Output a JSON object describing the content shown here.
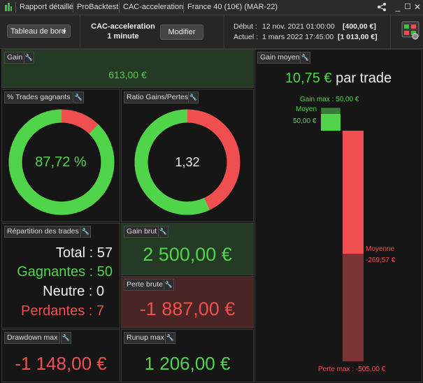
{
  "titlebar": {
    "tab1": "Rapport détaillé",
    "tab2": "ProBacktest",
    "tab3": "CAC-acceleration",
    "tab4": "France 40 (10€) (MAR-22)",
    "share_icon": "share-icon",
    "minimize_icon": "minimize-icon",
    "maximize_icon": "maximize-icon",
    "close_icon": "close-icon"
  },
  "toolbar": {
    "dashboard_label": "Tableau de bord",
    "strategy_name": "CAC-acceleration",
    "timeframe": "1 minute",
    "modify_label": "Modifier",
    "start_label": "Début :",
    "start_date": "12 nov. 2021 01:00:00",
    "start_value": "[400,00 €]",
    "end_label": "Actuel :",
    "end_date": "1 mars 2022 17:45:00",
    "end_value": "[1 013,00 €]",
    "settings_icon": "dashboard-settings-icon"
  },
  "gain": {
    "title": "Gain",
    "value": "613,00 €"
  },
  "pct_trades": {
    "title": "% Trades gagnants",
    "value": "87,72 %",
    "fraction": 0.8772
  },
  "ratio": {
    "title": "Ratio Gains/Pertes",
    "value": "1,32",
    "fraction": 0.57
  },
  "repartition": {
    "title": "Répartition des trades",
    "total": "Total : 57",
    "gagnantes": "Gagnantes : 50",
    "neutre": "Neutre : 0",
    "perdantes": "Perdantes : 7"
  },
  "gain_brut": {
    "title": "Gain brut",
    "value": "2 500,00 €"
  },
  "perte_brute": {
    "title": "Perte brute",
    "value": "-1 887,00 €"
  },
  "drawdown": {
    "title": "Drawdown max",
    "value": "-1 148,00 €"
  },
  "runup": {
    "title": "Runup max",
    "value": "1 206,00 €"
  },
  "gain_moyen": {
    "title": "Gain moyen",
    "headline_value": "10,75 €",
    "headline_suffix": "par trade",
    "gain_max_label": "Gain max : 50,00 €",
    "moyen_label": "Moyen",
    "moyen_value": "50,00 €",
    "moyenne_label": "Moyenne",
    "moyenne_value": "-269,57 €",
    "perte_max_label": "Perte max : -505,00 €",
    "gain_max": 50.0,
    "gain_avg": 50.0,
    "loss_avg": -269.57,
    "loss_max": -505.0
  },
  "colors": {
    "green": "#4fd44a",
    "red": "#ef4f4f"
  }
}
